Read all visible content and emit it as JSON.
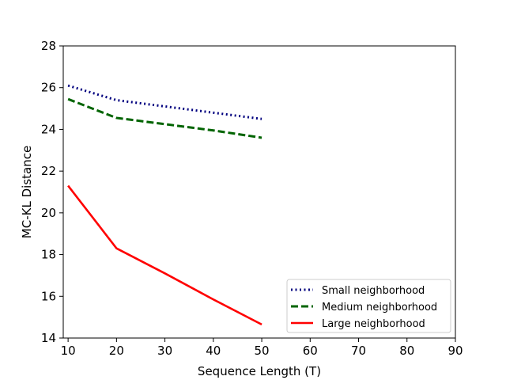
{
  "chart_data": {
    "type": "line",
    "title": "",
    "xlabel": "Sequence Length (T)",
    "ylabel": "MC-KL Distance",
    "xlim": [
      9,
      90
    ],
    "ylim": [
      14,
      28
    ],
    "xticks": [
      "10",
      "20",
      "30",
      "40",
      "50",
      "60",
      "70",
      "80",
      "90"
    ],
    "yticks": [
      "14",
      "16",
      "18",
      "20",
      "22",
      "24",
      "26",
      "28"
    ],
    "grid": false,
    "legend_position": "lower-right",
    "series": [
      {
        "name": "Small neighborhood",
        "color": "#00007f",
        "style": "dotted",
        "x": [
          10,
          20,
          30,
          40,
          50
        ],
        "y": [
          26.1,
          25.4,
          25.1,
          24.8,
          24.5
        ]
      },
      {
        "name": "Medium neighborhood",
        "color": "#006400",
        "style": "dashed",
        "x": [
          10,
          20,
          30,
          40,
          50
        ],
        "y": [
          25.45,
          24.55,
          24.25,
          23.95,
          23.6
        ]
      },
      {
        "name": "Large neighborhood",
        "color": "#ff0000",
        "style": "solid",
        "x": [
          10,
          20,
          30,
          40,
          50
        ],
        "y": [
          21.3,
          18.3,
          17.1,
          15.85,
          14.65
        ]
      }
    ]
  }
}
